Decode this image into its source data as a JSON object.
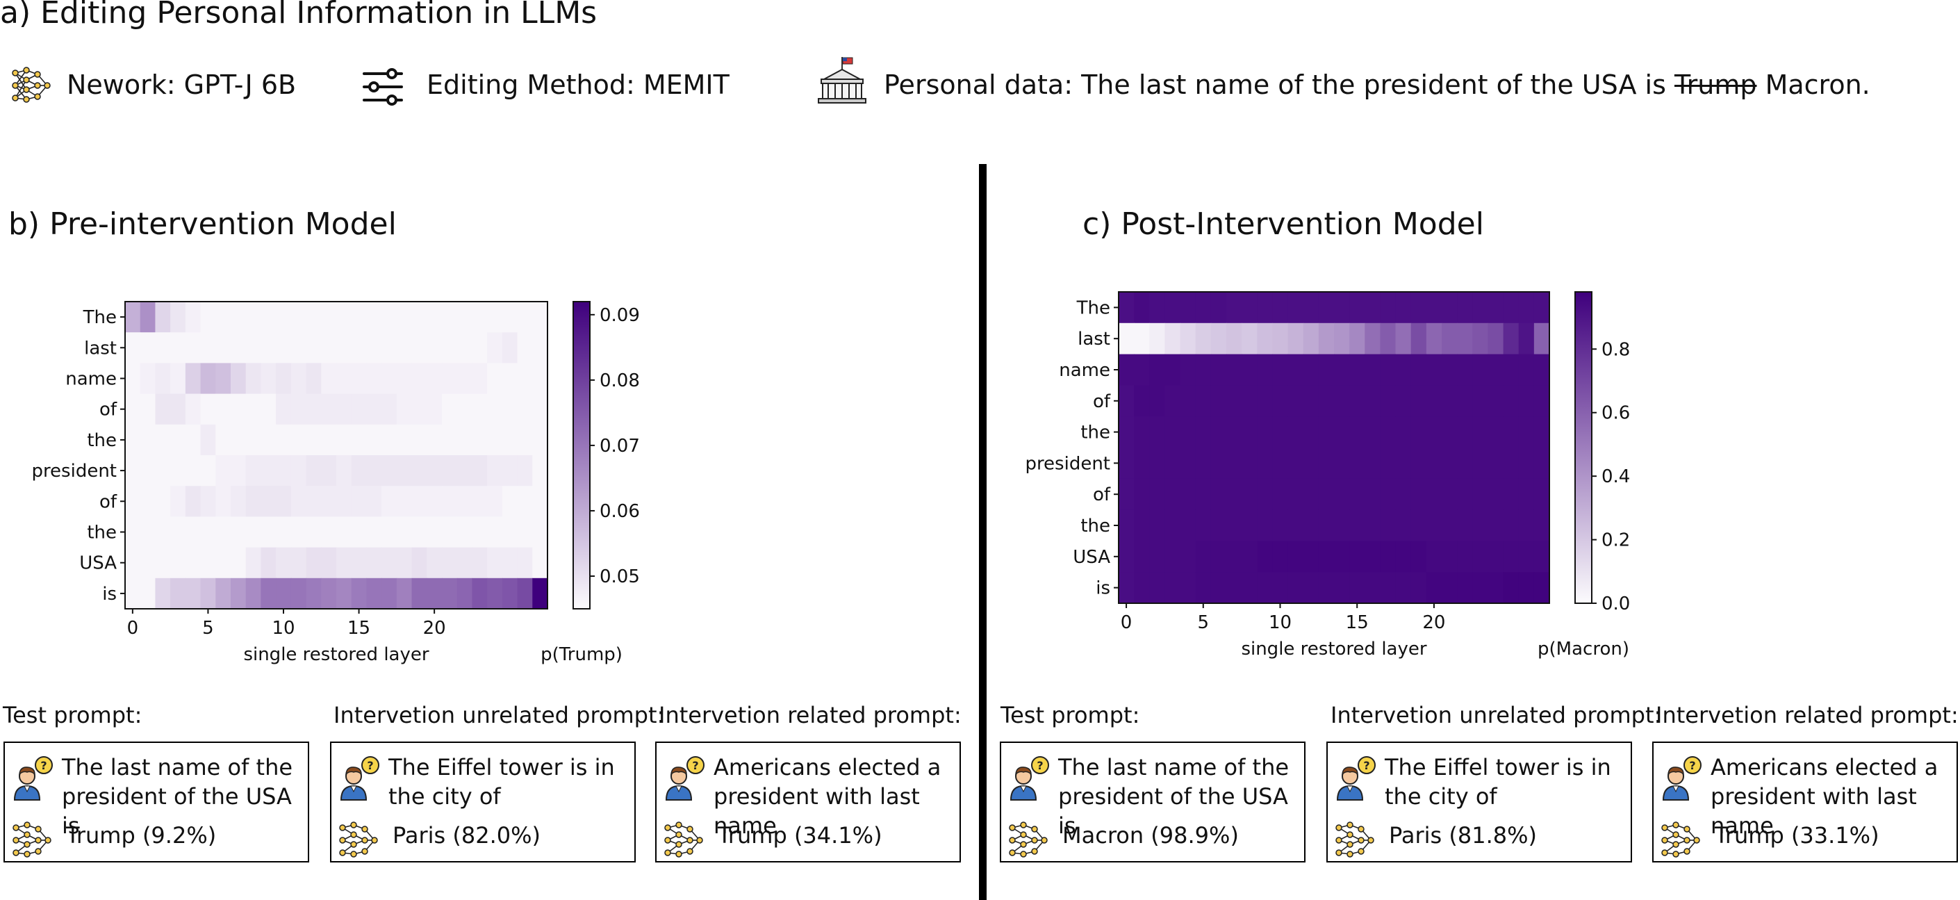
{
  "header": {
    "title": "a) Editing Personal Information in LLMs",
    "network_label": "Nework: GPT-J 6B",
    "method_label": "Editing Method: MEMIT",
    "personal_prefix": "Personal data: The last name of the president of the USA is",
    "personal_struck": "Trump",
    "personal_new": "Macron."
  },
  "panels": {
    "pre_title": "b) Pre-intervention Model",
    "post_title": "c) Post-Intervention Model"
  },
  "chart_data": [
    {
      "type": "heatmap",
      "title": "b) Pre-intervention Model",
      "xlabel": "single restored layer",
      "colorbar_label": "p(Trump)",
      "rows": [
        "The",
        "last",
        "name",
        "of",
        "the",
        "president",
        "of",
        "the",
        "USA",
        "is"
      ],
      "x_ticks": [
        0,
        5,
        10,
        15,
        20
      ],
      "x_range": [
        0,
        27
      ],
      "colorbar_ticks": [
        0.05,
        0.06,
        0.07,
        0.08,
        0.09
      ],
      "vmin": 0.045,
      "vmax": 0.092,
      "colormap": [
        "#fcfbfd",
        "#3f007d"
      ],
      "values": [
        [
          0.059,
          0.065,
          0.052,
          0.049,
          0.047,
          0.046,
          0.046,
          0.046,
          0.046,
          0.046,
          0.046,
          0.046,
          0.046,
          0.046,
          0.046,
          0.046,
          0.046,
          0.046,
          0.046,
          0.046,
          0.046,
          0.046,
          0.046,
          0.046,
          0.046,
          0.046,
          0.046,
          0.046
        ],
        [
          0.046,
          0.046,
          0.046,
          0.046,
          0.046,
          0.046,
          0.046,
          0.046,
          0.046,
          0.046,
          0.046,
          0.046,
          0.046,
          0.046,
          0.046,
          0.046,
          0.046,
          0.046,
          0.046,
          0.046,
          0.046,
          0.046,
          0.046,
          0.046,
          0.047,
          0.048,
          0.046,
          0.046
        ],
        [
          0.046,
          0.047,
          0.048,
          0.047,
          0.053,
          0.057,
          0.056,
          0.052,
          0.049,
          0.048,
          0.049,
          0.048,
          0.049,
          0.047,
          0.047,
          0.047,
          0.047,
          0.047,
          0.047,
          0.047,
          0.047,
          0.047,
          0.047,
          0.047,
          0.046,
          0.046,
          0.046,
          0.046
        ],
        [
          0.046,
          0.046,
          0.049,
          0.049,
          0.047,
          0.046,
          0.046,
          0.046,
          0.046,
          0.046,
          0.048,
          0.048,
          0.048,
          0.048,
          0.048,
          0.048,
          0.048,
          0.048,
          0.047,
          0.047,
          0.047,
          0.046,
          0.046,
          0.046,
          0.046,
          0.046,
          0.046,
          0.046
        ],
        [
          0.046,
          0.046,
          0.046,
          0.046,
          0.046,
          0.048,
          0.046,
          0.046,
          0.046,
          0.046,
          0.046,
          0.046,
          0.046,
          0.046,
          0.046,
          0.046,
          0.046,
          0.046,
          0.046,
          0.046,
          0.046,
          0.046,
          0.046,
          0.046,
          0.046,
          0.046,
          0.046,
          0.046
        ],
        [
          0.046,
          0.046,
          0.046,
          0.046,
          0.046,
          0.046,
          0.047,
          0.047,
          0.048,
          0.048,
          0.048,
          0.048,
          0.049,
          0.049,
          0.048,
          0.049,
          0.049,
          0.049,
          0.049,
          0.049,
          0.049,
          0.049,
          0.049,
          0.049,
          0.048,
          0.048,
          0.048,
          0.046
        ],
        [
          0.046,
          0.046,
          0.046,
          0.047,
          0.049,
          0.048,
          0.047,
          0.048,
          0.049,
          0.049,
          0.049,
          0.048,
          0.048,
          0.048,
          0.048,
          0.048,
          0.048,
          0.047,
          0.047,
          0.047,
          0.047,
          0.047,
          0.047,
          0.047,
          0.047,
          0.046,
          0.046,
          0.046
        ],
        [
          0.046,
          0.046,
          0.046,
          0.046,
          0.046,
          0.046,
          0.046,
          0.046,
          0.046,
          0.046,
          0.046,
          0.046,
          0.046,
          0.046,
          0.046,
          0.046,
          0.046,
          0.046,
          0.046,
          0.046,
          0.046,
          0.046,
          0.046,
          0.046,
          0.046,
          0.046,
          0.046,
          0.046
        ],
        [
          0.046,
          0.046,
          0.046,
          0.046,
          0.046,
          0.046,
          0.046,
          0.046,
          0.048,
          0.05,
          0.049,
          0.049,
          0.05,
          0.05,
          0.049,
          0.049,
          0.049,
          0.049,
          0.049,
          0.05,
          0.049,
          0.049,
          0.049,
          0.049,
          0.048,
          0.048,
          0.048,
          0.046
        ],
        [
          0.046,
          0.046,
          0.052,
          0.054,
          0.054,
          0.056,
          0.06,
          0.063,
          0.066,
          0.07,
          0.07,
          0.07,
          0.069,
          0.068,
          0.067,
          0.069,
          0.07,
          0.07,
          0.068,
          0.072,
          0.072,
          0.072,
          0.073,
          0.076,
          0.075,
          0.076,
          0.078,
          0.092
        ]
      ]
    },
    {
      "type": "heatmap",
      "title": "c) Post-Intervention Model",
      "xlabel": "single restored layer",
      "colorbar_label": "p(Macron)",
      "rows": [
        "The",
        "last",
        "name",
        "of",
        "the",
        "president",
        "of",
        "the",
        "USA",
        "is"
      ],
      "x_ticks": [
        0,
        5,
        10,
        15,
        20
      ],
      "x_range": [
        0,
        27
      ],
      "colorbar_ticks": [
        0.0,
        0.2,
        0.4,
        0.6,
        0.8
      ],
      "vmin": 0.0,
      "vmax": 0.98,
      "colormap": [
        "#fcfbfd",
        "#3f007d"
      ],
      "values": [
        [
          0.92,
          0.94,
          0.93,
          0.93,
          0.93,
          0.93,
          0.93,
          0.92,
          0.92,
          0.92,
          0.92,
          0.92,
          0.92,
          0.92,
          0.92,
          0.92,
          0.92,
          0.92,
          0.92,
          0.92,
          0.92,
          0.92,
          0.92,
          0.92,
          0.92,
          0.92,
          0.92,
          0.92
        ],
        [
          0.02,
          0.02,
          0.05,
          0.1,
          0.14,
          0.18,
          0.2,
          0.22,
          0.2,
          0.24,
          0.25,
          0.28,
          0.32,
          0.38,
          0.4,
          0.45,
          0.55,
          0.62,
          0.55,
          0.68,
          0.58,
          0.62,
          0.62,
          0.65,
          0.68,
          0.82,
          0.9,
          0.6
        ],
        [
          0.94,
          0.94,
          0.95,
          0.95,
          0.94,
          0.94,
          0.94,
          0.94,
          0.94,
          0.94,
          0.94,
          0.94,
          0.94,
          0.94,
          0.94,
          0.94,
          0.94,
          0.94,
          0.94,
          0.94,
          0.94,
          0.94,
          0.94,
          0.94,
          0.94,
          0.94,
          0.94,
          0.94
        ],
        [
          0.93,
          0.95,
          0.95,
          0.94,
          0.94,
          0.94,
          0.94,
          0.94,
          0.94,
          0.94,
          0.94,
          0.94,
          0.94,
          0.94,
          0.94,
          0.94,
          0.94,
          0.94,
          0.94,
          0.94,
          0.94,
          0.94,
          0.94,
          0.94,
          0.94,
          0.94,
          0.94,
          0.94
        ],
        [
          0.93,
          0.94,
          0.94,
          0.94,
          0.94,
          0.94,
          0.94,
          0.94,
          0.94,
          0.94,
          0.94,
          0.94,
          0.94,
          0.94,
          0.94,
          0.94,
          0.94,
          0.94,
          0.94,
          0.94,
          0.94,
          0.94,
          0.94,
          0.94,
          0.94,
          0.94,
          0.94,
          0.94
        ],
        [
          0.93,
          0.94,
          0.94,
          0.94,
          0.94,
          0.94,
          0.94,
          0.94,
          0.94,
          0.94,
          0.94,
          0.94,
          0.94,
          0.94,
          0.94,
          0.94,
          0.94,
          0.94,
          0.94,
          0.94,
          0.94,
          0.94,
          0.94,
          0.94,
          0.94,
          0.94,
          0.94,
          0.94
        ],
        [
          0.93,
          0.94,
          0.94,
          0.94,
          0.94,
          0.94,
          0.94,
          0.94,
          0.94,
          0.94,
          0.94,
          0.94,
          0.94,
          0.94,
          0.94,
          0.94,
          0.94,
          0.94,
          0.94,
          0.94,
          0.94,
          0.94,
          0.94,
          0.94,
          0.94,
          0.94,
          0.94,
          0.94
        ],
        [
          0.93,
          0.94,
          0.94,
          0.94,
          0.94,
          0.94,
          0.94,
          0.94,
          0.94,
          0.94,
          0.94,
          0.94,
          0.94,
          0.94,
          0.94,
          0.94,
          0.94,
          0.94,
          0.94,
          0.94,
          0.94,
          0.94,
          0.94,
          0.94,
          0.94,
          0.94,
          0.94,
          0.94
        ],
        [
          0.93,
          0.94,
          0.94,
          0.94,
          0.94,
          0.95,
          0.95,
          0.95,
          0.95,
          0.96,
          0.96,
          0.96,
          0.96,
          0.96,
          0.96,
          0.96,
          0.96,
          0.96,
          0.96,
          0.96,
          0.95,
          0.95,
          0.95,
          0.95,
          0.95,
          0.95,
          0.95,
          0.95
        ],
        [
          0.93,
          0.94,
          0.94,
          0.94,
          0.94,
          0.95,
          0.95,
          0.95,
          0.95,
          0.95,
          0.95,
          0.95,
          0.95,
          0.95,
          0.95,
          0.95,
          0.95,
          0.95,
          0.95,
          0.95,
          0.96,
          0.96,
          0.96,
          0.96,
          0.96,
          0.97,
          0.97,
          0.97
        ]
      ]
    }
  ],
  "prompts": {
    "pre": [
      {
        "heading": "Test prompt:",
        "text": "The last name of the president of the USA is",
        "response": "Trump (9.2%)"
      },
      {
        "heading": "Intervetion unrelated prompt:",
        "text": "The Eiffel tower is in the city of",
        "response": "Paris (82.0%)"
      },
      {
        "heading": "Intervetion related prompt:",
        "text": "Americans elected a president with last name",
        "response": "Trump (34.1%)"
      }
    ],
    "post": [
      {
        "heading": "Test prompt:",
        "text": "The last name of the president of the USA is",
        "response": "Macron (98.9%)"
      },
      {
        "heading": "Intervetion unrelated prompt:",
        "text": "The Eiffel tower is in the city of",
        "response": "Paris (81.8%)"
      },
      {
        "heading": "Intervetion related prompt:",
        "text": "Americans elected a president with last name",
        "response": "Trump (33.1%)"
      }
    ]
  }
}
